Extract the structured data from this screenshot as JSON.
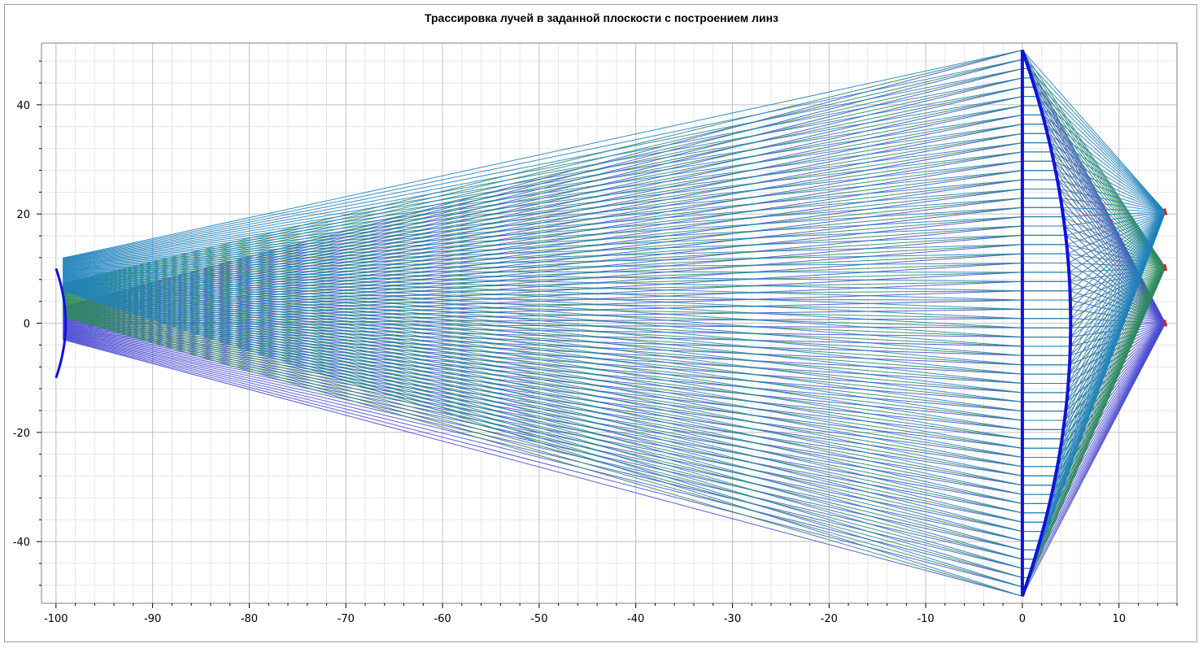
{
  "chart_data": {
    "type": "line",
    "title": "Трассировка лучей в заданной плоскости с построением линз",
    "xlabel": "",
    "ylabel": "",
    "xlim": [
      -101.5,
      16
    ],
    "ylim": [
      -51.3,
      51.3
    ],
    "x_ticks": [
      -100,
      -90,
      -80,
      -70,
      -60,
      -50,
      -40,
      -30,
      -20,
      -10,
      0,
      10
    ],
    "x_tick_labels": [
      "-100",
      "-90",
      "-80",
      "-70",
      "-60",
      "-50",
      "-40",
      "-30",
      "-20",
      "-10",
      "0",
      "10"
    ],
    "y_ticks": [
      -40,
      -20,
      0,
      20,
      40
    ],
    "y_tick_labels": [
      "-40",
      "-20",
      "0",
      "20",
      "40"
    ],
    "grid": true,
    "legend": "none",
    "lenses": [
      {
        "name": "diverging lens",
        "color": "#1010e0",
        "x_edge": -100,
        "x_center": -99.0,
        "half_height": 10
      },
      {
        "name": "converging lens",
        "color": "#1010e0",
        "x_plane": 0,
        "x_center": 5.0,
        "half_height": 50
      }
    ],
    "ray_fans": [
      {
        "color": "#4a4ad2",
        "source": [
          -99.3,
          0
        ],
        "focus": [
          14.8,
          0
        ],
        "y_from": -50,
        "y_to": 50,
        "count": 60
      },
      {
        "color": "#2e8a5e",
        "source": [
          -99.3,
          4.5
        ],
        "focus": [
          14.8,
          10.2
        ],
        "y_from": -50,
        "y_to": 50,
        "count": 60
      },
      {
        "color": "#1f82bd",
        "source": [
          -99.3,
          9.5
        ],
        "focus": [
          14.8,
          20.4
        ],
        "y_from": -50,
        "y_to": 50,
        "count": 60
      }
    ],
    "focus_marker_color": "#e02020"
  }
}
